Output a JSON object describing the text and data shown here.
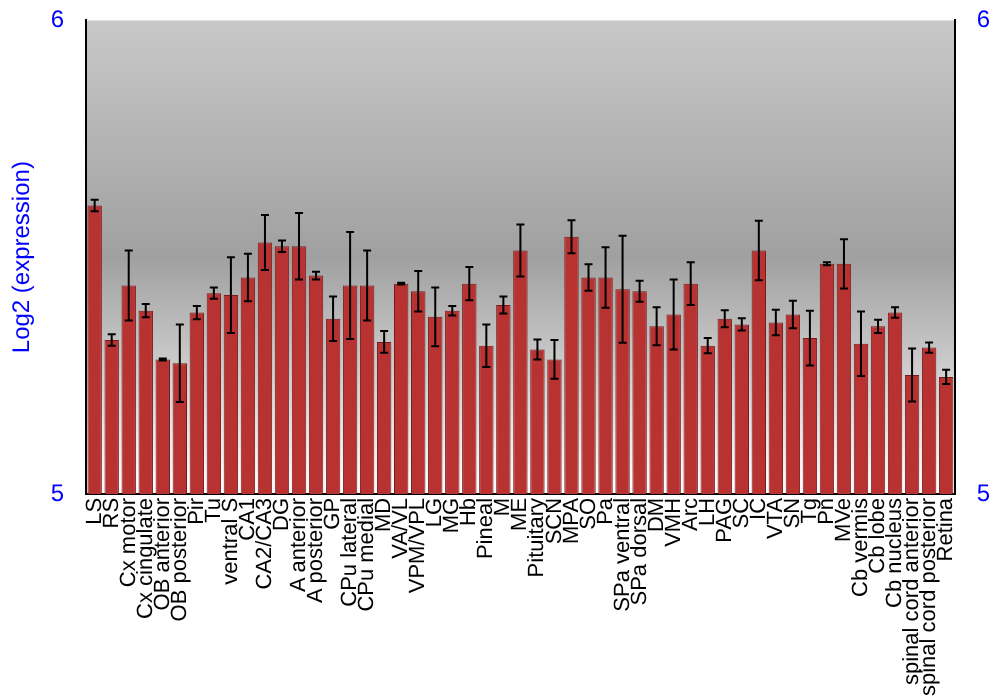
{
  "chart_data": {
    "type": "bar",
    "ylabel": "Log2 (expression)",
    "categories": [
      "LS",
      "RS",
      "Cx motor",
      "Cx cingulate",
      "OB anterior",
      "OB posterior",
      "Pir",
      "Tu",
      "ventral S",
      "CA1",
      "CA2/CA3",
      "DG",
      "A anterior",
      "A posterior",
      "GP",
      "CPu lateral",
      "CPu medial",
      "MD",
      "VA/VL",
      "VPM/VPL",
      "LG",
      "MG",
      "Hb",
      "Pineal",
      "M",
      "ME",
      "Pituitary",
      "SCN",
      "MPA",
      "SO",
      "Pa",
      "SPa ventral",
      "SPa dorsal",
      "DM",
      "VMH",
      "Arc",
      "LH",
      "PAG",
      "SC",
      "IC",
      "VTA",
      "SN",
      "Tg",
      "Pn",
      "MVe",
      "Cb vermis",
      "Cb lobe",
      "Cb nucleus",
      "spinal cord anterior",
      "spinal cord posterior",
      "Retina"
    ],
    "values": [
      5.609,
      5.325,
      5.44,
      5.387,
      5.284,
      5.276,
      5.383,
      5.424,
      5.42,
      5.457,
      5.531,
      5.523,
      5.523,
      5.461,
      5.37,
      5.44,
      5.44,
      5.321,
      5.444,
      5.428,
      5.374,
      5.387,
      5.444,
      5.313,
      5.399,
      5.514,
      5.305,
      5.284,
      5.543,
      5.457,
      5.457,
      5.432,
      5.428,
      5.354,
      5.379,
      5.444,
      5.313,
      5.37,
      5.358,
      5.514,
      5.362,
      5.379,
      5.329,
      5.486,
      5.486,
      5.317,
      5.354,
      5.383,
      5.251,
      5.309,
      5.247
    ],
    "errors": [
      0.012,
      0.012,
      0.074,
      0.014,
      0.002,
      0.082,
      0.014,
      0.012,
      0.08,
      0.05,
      0.058,
      0.012,
      0.07,
      0.008,
      0.047,
      0.113,
      0.074,
      0.023,
      0.002,
      0.043,
      0.062,
      0.01,
      0.035,
      0.045,
      0.018,
      0.055,
      0.021,
      0.041,
      0.035,
      0.028,
      0.064,
      0.113,
      0.022,
      0.04,
      0.074,
      0.045,
      0.016,
      0.018,
      0.013,
      0.063,
      0.027,
      0.029,
      0.058,
      0.003,
      0.052,
      0.068,
      0.014,
      0.011,
      0.056,
      0.011,
      0.015
    ],
    "color": "#b83232",
    "ylim": [
      5,
      6
    ],
    "yticks": [
      5,
      6
    ],
    "y2lim": [
      5,
      6
    ],
    "y2ticks": [
      5,
      6
    ],
    "grid": false,
    "legend": false
  }
}
